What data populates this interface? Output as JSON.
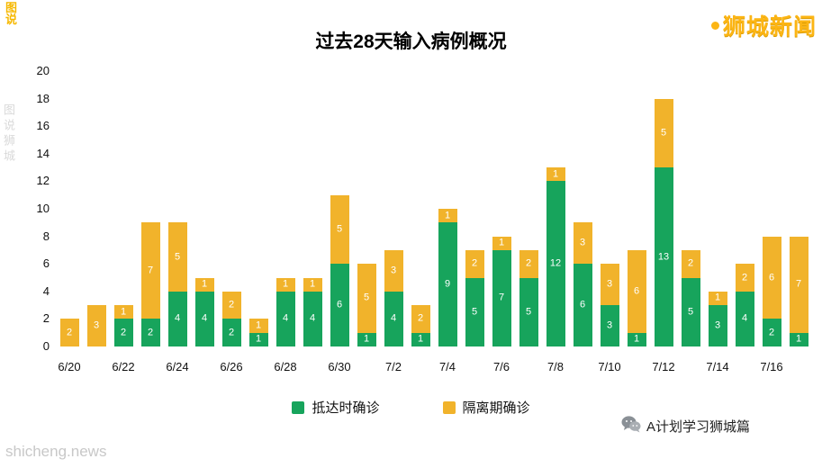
{
  "branding": {
    "top_left_logo": "图说",
    "top_right": "狮城新闻",
    "watermark_bottom": "shicheng.news",
    "watermark_vertical": "图说狮城",
    "footer_right": "A计划学习狮城篇"
  },
  "chart_data": {
    "type": "bar",
    "stacked": true,
    "title": "过去28天输入病例概况",
    "categories": [
      "6/20",
      "6/21",
      "6/22",
      "6/23",
      "6/24",
      "6/25",
      "6/26",
      "6/27",
      "6/28",
      "6/29",
      "6/30",
      "7/1",
      "7/2",
      "7/3",
      "7/4",
      "7/5",
      "7/6",
      "7/7",
      "7/8",
      "7/9",
      "7/10",
      "7/11",
      "7/12",
      "7/13",
      "7/14",
      "7/15",
      "7/16",
      "7/17"
    ],
    "x_tick_labels": [
      "6/20",
      "6/22",
      "6/24",
      "6/26",
      "6/28",
      "6/30",
      "7/2",
      "7/4",
      "7/6",
      "7/8",
      "7/10",
      "7/12",
      "7/14",
      "7/16"
    ],
    "series": [
      {
        "name": "抵达时确诊",
        "color": "#17A45C",
        "values": [
          0,
          0,
          2,
          2,
          4,
          4,
          2,
          1,
          4,
          4,
          6,
          1,
          4,
          1,
          9,
          5,
          7,
          5,
          12,
          6,
          3,
          1,
          13,
          5,
          3,
          4,
          2,
          1
        ]
      },
      {
        "name": "隔离期确诊",
        "color": "#F1B32B",
        "values": [
          2,
          3,
          1,
          7,
          5,
          1,
          2,
          1,
          1,
          1,
          5,
          5,
          3,
          2,
          1,
          2,
          1,
          2,
          1,
          3,
          3,
          6,
          5,
          2,
          1,
          2,
          6,
          7
        ]
      }
    ],
    "ylim": [
      0,
      20
    ],
    "y_ticks": [
      0,
      2,
      4,
      6,
      8,
      10,
      12,
      14,
      16,
      18,
      20
    ],
    "grid": false,
    "legend_position": "bottom",
    "value_label_color": "#ffffff"
  }
}
